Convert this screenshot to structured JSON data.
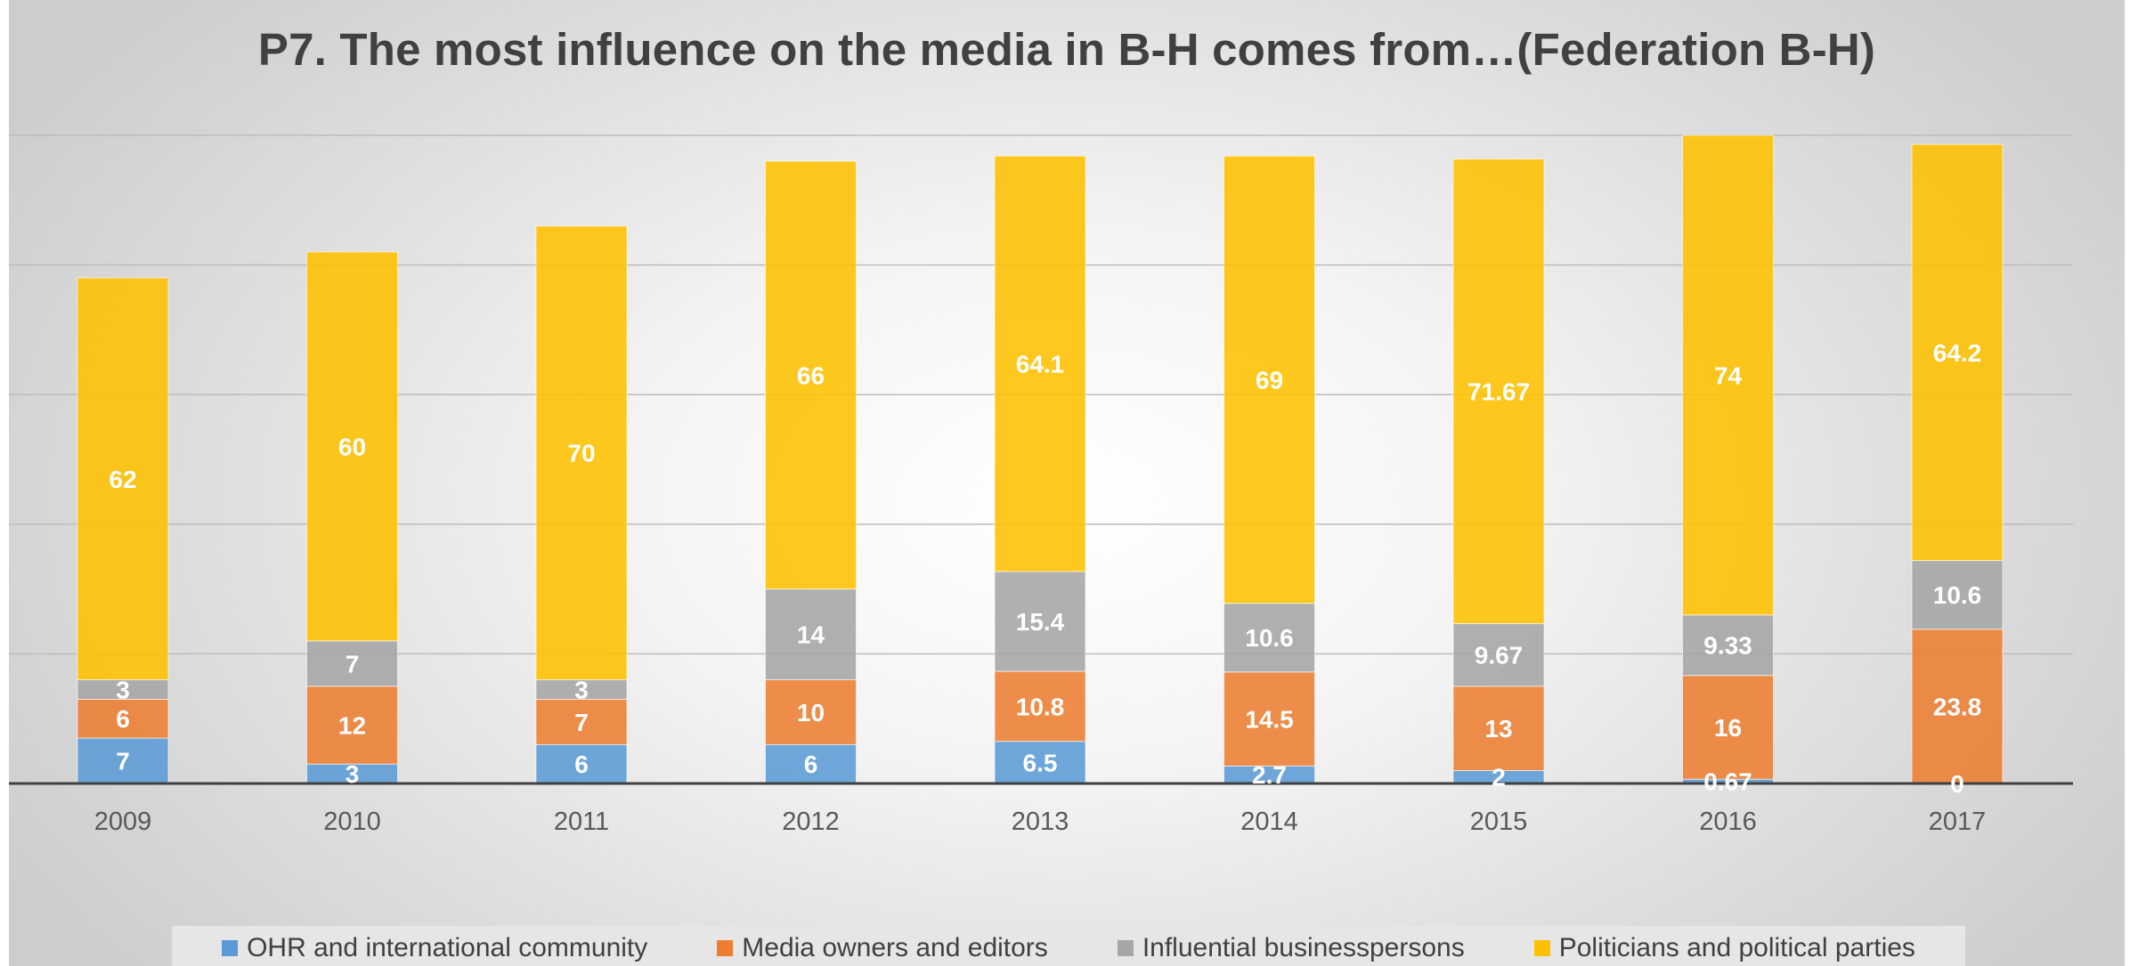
{
  "chart_data": {
    "type": "bar",
    "stacked": true,
    "title": "P7. The most influence on the media in B-H comes from…(Federation B-H)",
    "categories": [
      "2009",
      "2010",
      "2011",
      "2012",
      "2013",
      "2014",
      "2015",
      "2016",
      "2017"
    ],
    "series": [
      {
        "name": "OHR and international community",
        "color": "#5B9BD5",
        "values": [
          7,
          3,
          6,
          6,
          6.5,
          2.7,
          2,
          0.67,
          0
        ],
        "labels": [
          "7",
          "3",
          "6",
          "6",
          "6.5",
          "2.7",
          "2",
          "0.67",
          "0"
        ]
      },
      {
        "name": "Media owners and editors",
        "color": "#ED7D31",
        "values": [
          6,
          12,
          7,
          10,
          10.8,
          14.5,
          13,
          16,
          23.8
        ],
        "labels": [
          "6",
          "12",
          "7",
          "10",
          "10.8",
          "14.5",
          "13",
          "16",
          "23.8"
        ]
      },
      {
        "name": "Influential businesspersons",
        "color": "#A5A5A5",
        "values": [
          3,
          7,
          3,
          14,
          15.4,
          10.6,
          9.67,
          9.33,
          10.6
        ],
        "labels": [
          "3",
          "7",
          "3",
          "14",
          "15.4",
          "10.6",
          "9.67",
          "9.33",
          "10.6"
        ]
      },
      {
        "name": "Politicians and political parties",
        "color": "#FFC000",
        "values": [
          62,
          60,
          70,
          66,
          64.1,
          69,
          71.67,
          74,
          64.2
        ],
        "labels": [
          "62",
          "60",
          "70",
          "66",
          "64.1",
          "69",
          "71.67",
          "74",
          "64.2"
        ]
      }
    ],
    "ylim": [
      0,
      100
    ],
    "grid": true,
    "legend_position": "bottom",
    "xlabel": "",
    "ylabel": ""
  }
}
